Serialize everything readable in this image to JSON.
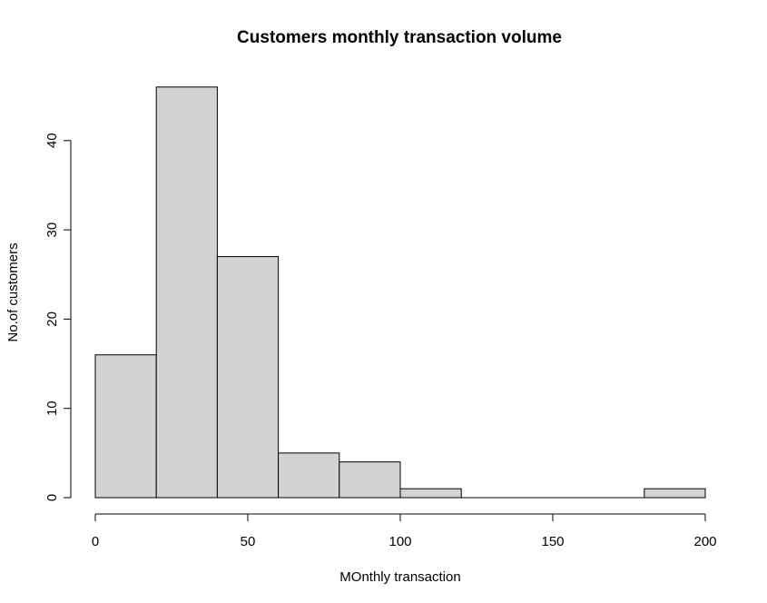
{
  "chart_data": {
    "type": "bar",
    "title": "Customers monthly transaction volume",
    "xlabel": "MOnthly transaction",
    "ylabel": "No.of customers",
    "bins": [
      {
        "from": 0,
        "to": 20,
        "count": 16
      },
      {
        "from": 20,
        "to": 40,
        "count": 46
      },
      {
        "from": 40,
        "to": 60,
        "count": 27
      },
      {
        "from": 60,
        "to": 80,
        "count": 5
      },
      {
        "from": 80,
        "to": 100,
        "count": 4
      },
      {
        "from": 100,
        "to": 120,
        "count": 1
      },
      {
        "from": 120,
        "to": 140,
        "count": 0
      },
      {
        "from": 140,
        "to": 160,
        "count": 0
      },
      {
        "from": 160,
        "to": 180,
        "count": 0
      },
      {
        "from": 180,
        "to": 200,
        "count": 1
      }
    ],
    "xlim": [
      0,
      200
    ],
    "ylim": [
      0,
      46
    ],
    "xticks": [
      "0",
      "50",
      "100",
      "150",
      "200"
    ],
    "yticks": [
      "0",
      "10",
      "20",
      "30",
      "40"
    ],
    "grid": false,
    "bar_color": "#d3d3d3"
  }
}
